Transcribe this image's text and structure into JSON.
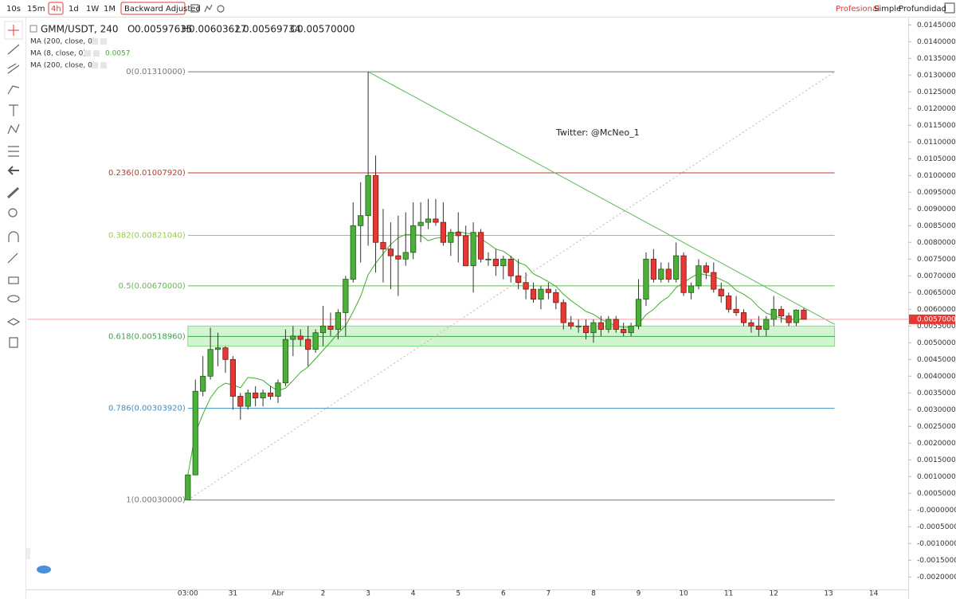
{
  "toolbar": {
    "intervals": [
      "10s",
      "15m",
      "4h",
      "1d",
      "1W",
      "1M"
    ],
    "adjust": "Backward Adjusted",
    "views": [
      "Profesional",
      "Simple",
      "Profundidad"
    ]
  },
  "legend": {
    "symbol": "GMM/USDT, 240",
    "ohlc": [
      [
        "O",
        "0.00597635"
      ],
      [
        "H",
        "0.00603627"
      ],
      [
        "L",
        "0.00569734"
      ],
      [
        "C",
        "0.00570000"
      ]
    ],
    "indicators": [
      "MA (200, close, 0)",
      "MA (8, close, 0)",
      "MA (200, close, 0)"
    ],
    "ma_value": "0.0057"
  },
  "chart_data": {
    "type": "candlestick",
    "annotation": "Twitter: @McNeo_1",
    "up_color": "#4caf3a",
    "down_color": "#e53935",
    "ma_color": "#3fae2b",
    "ma_period": 8,
    "open": [
      0.0003,
      0.00105,
      0.00355,
      0.004,
      0.0048,
      0.00485,
      0.0045,
      0.0034,
      0.0031,
      0.0035,
      0.00335,
      0.0035,
      0.0034,
      0.0038,
      0.0051,
      0.0052,
      0.0051,
      0.0048,
      0.0053,
      0.0055,
      0.0054,
      0.0059,
      0.0069,
      0.0085,
      0.0088,
      0.01,
      0.008,
      0.0078,
      0.0076,
      0.0075,
      0.0077,
      0.0085,
      0.0086,
      0.0087,
      0.0086,
      0.008,
      0.0083,
      0.0082,
      0.0073,
      0.0083,
      0.0075,
      0.0075,
      0.0073,
      0.0075,
      0.007,
      0.0068,
      0.0066,
      0.0063,
      0.0066,
      0.0065,
      0.0062,
      0.0056,
      0.0055,
      0.0055,
      0.0053,
      0.0056,
      0.0054,
      0.0057,
      0.0054,
      0.0053,
      0.0055,
      0.0063,
      0.0075,
      0.0069,
      0.0072,
      0.0069,
      0.0076,
      0.0065,
      0.0067,
      0.0073,
      0.0071,
      0.0066,
      0.0064,
      0.006,
      0.0059,
      0.0056,
      0.0055,
      0.0054,
      0.0057,
      0.006,
      0.0058,
      0.0056,
      0.00597635
    ],
    "high": [
      0.00105,
      0.0039,
      0.0046,
      0.00545,
      0.0053,
      0.0049,
      0.0046,
      0.0035,
      0.0036,
      0.0037,
      0.0036,
      0.0037,
      0.0039,
      0.0054,
      0.0055,
      0.0054,
      0.0055,
      0.0054,
      0.0061,
      0.0059,
      0.006,
      0.007,
      0.0092,
      0.0098,
      0.0131,
      0.0106,
      0.009,
      0.0086,
      0.0088,
      0.0089,
      0.0092,
      0.0092,
      0.0093,
      0.0093,
      0.0092,
      0.0084,
      0.0089,
      0.0085,
      0.0086,
      0.0084,
      0.0077,
      0.0078,
      0.0076,
      0.0076,
      0.0075,
      0.0071,
      0.0068,
      0.0067,
      0.0068,
      0.0066,
      0.0063,
      0.0058,
      0.0057,
      0.0057,
      0.0057,
      0.0058,
      0.0058,
      0.0058,
      0.0056,
      0.0056,
      0.0069,
      0.0077,
      0.0078,
      0.0074,
      0.0074,
      0.008,
      0.0077,
      0.0068,
      0.0075,
      0.0074,
      0.0074,
      0.0068,
      0.0065,
      0.0064,
      0.006,
      0.0057,
      0.0058,
      0.0058,
      0.0064,
      0.0061,
      0.0059,
      0.006,
      0.00603627
    ],
    "low": [
      0.0003,
      0.00105,
      0.0034,
      0.0039,
      0.0043,
      0.0041,
      0.003,
      0.0027,
      0.003,
      0.0031,
      0.0031,
      0.0033,
      0.0032,
      0.0037,
      0.0046,
      0.0049,
      0.0043,
      0.0047,
      0.0049,
      0.0052,
      0.0051,
      0.0052,
      0.0068,
      0.0074,
      0.0079,
      0.0071,
      0.0068,
      0.0066,
      0.0064,
      0.0073,
      0.0075,
      0.008,
      0.0084,
      0.0085,
      0.0079,
      0.0076,
      0.0074,
      0.0073,
      0.0065,
      0.0074,
      0.0073,
      0.007,
      0.0069,
      0.0068,
      0.0066,
      0.0063,
      0.0062,
      0.006,
      0.0063,
      0.006,
      0.0054,
      0.0054,
      0.0053,
      0.0051,
      0.005,
      0.0052,
      0.0053,
      0.0053,
      0.0052,
      0.0052,
      0.0054,
      0.0061,
      0.0068,
      0.0068,
      0.0068,
      0.0068,
      0.0064,
      0.0063,
      0.0066,
      0.0069,
      0.0065,
      0.0062,
      0.0059,
      0.0058,
      0.0055,
      0.0053,
      0.0052,
      0.0052,
      0.0055,
      0.0056,
      0.0055,
      0.0055,
      0.00569734
    ],
    "close": [
      0.00105,
      0.00355,
      0.004,
      0.0048,
      0.00485,
      0.0045,
      0.0034,
      0.0031,
      0.0035,
      0.00335,
      0.0035,
      0.0034,
      0.0038,
      0.0051,
      0.0052,
      0.0051,
      0.0048,
      0.0053,
      0.0055,
      0.0054,
      0.0059,
      0.0069,
      0.0085,
      0.0088,
      0.01,
      0.008,
      0.0078,
      0.0076,
      0.0075,
      0.0077,
      0.0085,
      0.0086,
      0.0087,
      0.0086,
      0.008,
      0.0083,
      0.0082,
      0.0073,
      0.0083,
      0.0075,
      0.0075,
      0.0073,
      0.0075,
      0.007,
      0.0068,
      0.0066,
      0.0063,
      0.0066,
      0.0065,
      0.0062,
      0.0056,
      0.0055,
      0.0055,
      0.0053,
      0.0056,
      0.0054,
      0.0057,
      0.0054,
      0.0053,
      0.0055,
      0.0063,
      0.0075,
      0.0069,
      0.0072,
      0.0069,
      0.0076,
      0.0065,
      0.0067,
      0.0073,
      0.0071,
      0.0066,
      0.0064,
      0.006,
      0.0059,
      0.0056,
      0.0055,
      0.0054,
      0.0057,
      0.006,
      0.0058,
      0.0056,
      0.00597635,
      0.0057
    ],
    "xlim": [
      -21.3,
      95.9
    ],
    "xticks": [
      {
        "value": 0,
        "label": "03:00"
      },
      {
        "value": 6,
        "label": "31"
      },
      {
        "value": 12,
        "label": "Abr"
      },
      {
        "value": 18,
        "label": "2"
      },
      {
        "value": 24,
        "label": "3"
      },
      {
        "value": 30,
        "label": "4"
      },
      {
        "value": 36,
        "label": "5"
      },
      {
        "value": 42,
        "label": "6"
      },
      {
        "value": 48,
        "label": "7"
      },
      {
        "value": 54,
        "label": "8"
      },
      {
        "value": 60,
        "label": "9"
      },
      {
        "value": 66,
        "label": "10"
      },
      {
        "value": 72,
        "label": "11"
      },
      {
        "value": 78,
        "label": "12"
      },
      {
        "value": 85.3,
        "label": "13"
      },
      {
        "value": 91.3,
        "label": "14"
      }
    ],
    "ylim": [
      -0.00235,
      0.01465
    ],
    "yticks": [
      {
        "value": 0.0145,
        "label": "0.01450000"
      },
      {
        "value": 0.014,
        "label": "0.01400000"
      },
      {
        "value": 0.0135,
        "label": "0.01350000"
      },
      {
        "value": 0.013,
        "label": "0.01300000"
      },
      {
        "value": 0.0125,
        "label": "0.01250000"
      },
      {
        "value": 0.012,
        "label": "0.01200000"
      },
      {
        "value": 0.0115,
        "label": "0.01150000"
      },
      {
        "value": 0.011,
        "label": "0.01100000"
      },
      {
        "value": 0.0105,
        "label": "0.01050000"
      },
      {
        "value": 0.01,
        "label": "0.01000000"
      },
      {
        "value": 0.0095,
        "label": "0.00950000"
      },
      {
        "value": 0.009,
        "label": "0.00900000"
      },
      {
        "value": 0.0085,
        "label": "0.00850000"
      },
      {
        "value": 0.008,
        "label": "0.00800000"
      },
      {
        "value": 0.0075,
        "label": "0.00750000"
      },
      {
        "value": 0.007,
        "label": "0.00700000"
      },
      {
        "value": 0.0065,
        "label": "0.00650000"
      },
      {
        "value": 0.006,
        "label": "0.00600000"
      },
      {
        "value": 0.0055,
        "label": "0.00550000"
      },
      {
        "value": 0.005,
        "label": "0.00500000"
      },
      {
        "value": 0.0045,
        "label": "0.00450000"
      },
      {
        "value": 0.004,
        "label": "0.00400000"
      },
      {
        "value": 0.0035,
        "label": "0.00350000"
      },
      {
        "value": 0.003,
        "label": "0.00300000"
      },
      {
        "value": 0.0025,
        "label": "0.00250000"
      },
      {
        "value": 0.002,
        "label": "0.00200000"
      },
      {
        "value": 0.0015,
        "label": "0.00150000"
      },
      {
        "value": 0.001,
        "label": "0.00100000"
      },
      {
        "value": 0.0005,
        "label": "0.00050000"
      },
      {
        "value": 0,
        "label": "-0.00000000"
      },
      {
        "value": -0.0005,
        "label": "-0.00050000"
      },
      {
        "value": -0.001,
        "label": "-0.00100000"
      },
      {
        "value": -0.0015,
        "label": "-0.00150000"
      },
      {
        "value": -0.002,
        "label": "-0.00200000"
      }
    ],
    "grid": false,
    "fib_span": [
      0,
      86.1
    ],
    "fib_levels": [
      {
        "label": "0(0.01310000)",
        "value": 0.0131,
        "color": "#787878"
      },
      {
        "label": "0.236(0.01007920)",
        "value": 0.0100792,
        "color": "#c0392b"
      },
      {
        "label": "0.382(0.00821040)",
        "value": 0.0082104,
        "color": "#9ccc45"
      },
      {
        "label": "0.5(0.00670000)",
        "value": 0.0067,
        "color": "#5cbf4a"
      },
      {
        "label": "0.618(0.00518960)",
        "value": 0.0051896,
        "color": "#3aa54a"
      },
      {
        "label": "0.786(0.00303920)",
        "value": 0.0030392,
        "color": "#3f8fc9"
      },
      {
        "label": "1(0.00030000)",
        "value": 0.0003,
        "color": "#787878"
      }
    ],
    "zone": [
      0.0049,
      0.0055
    ],
    "zone_color": "#7ee07a",
    "trendlines": [
      {
        "points": [
          [
            24,
            0.0131
          ],
          [
            86.1,
            0.00555
          ]
        ],
        "color": "#5cb85c",
        "dashed": false
      },
      {
        "points": [
          [
            0,
            0.0003
          ],
          [
            86.1,
            0.0131
          ]
        ],
        "color": "#d9a9a9",
        "dashed": true
      }
    ],
    "last_price": {
      "value": 0.0057,
      "label": "0.00570000"
    },
    "last_color": "#f2a0a8",
    "last_box_color": "#e53935"
  }
}
